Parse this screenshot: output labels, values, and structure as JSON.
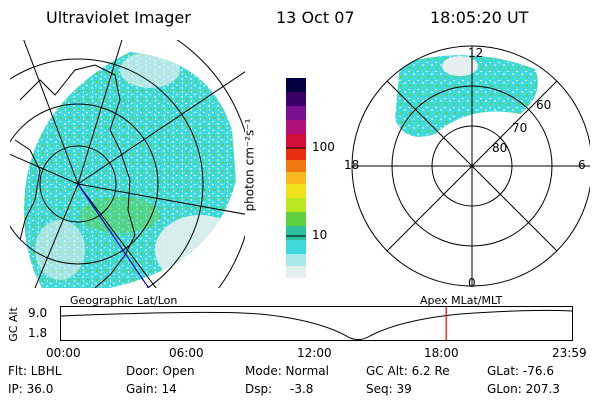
{
  "header": {
    "title": "Ultraviolet Imager",
    "date": "13 Oct 07",
    "time": "18:05:20 UT"
  },
  "colorbar": {
    "label": "photon cm⁻²s⁻¹",
    "ticks": [
      "100",
      "10"
    ],
    "colors": [
      "#000040",
      "#3a006a",
      "#7a1090",
      "#b0107a",
      "#d0103a",
      "#e83010",
      "#f07810",
      "#f8b820",
      "#f0e020",
      "#b8e820",
      "#60d040",
      "#30c0a0",
      "#40d8d8",
      "#a8e8e8",
      "#e6efef"
    ]
  },
  "geo_panel": {
    "caption": "Geographic Lat/Lon"
  },
  "polar_panel": {
    "caption": "Apex MLat/MLT",
    "mlt_labels": {
      "top": "12",
      "left": "18",
      "right": "6",
      "bottom": "0"
    },
    "lat_labels": [
      "60",
      "70",
      "80"
    ]
  },
  "altitude_plot": {
    "ylabel": "GC Alt",
    "ymax": "9.0",
    "ymin": "1.8",
    "xticks": [
      "00:00",
      "06:00",
      "12:00",
      "18:00",
      "23:59"
    ],
    "current_marker_hour": 18.09
  },
  "info": {
    "flt": "Flt: LBHL",
    "ip": "IP: 36.0",
    "door": "Door: Open",
    "gain": "Gain: 14",
    "mode": "Mode: Normal",
    "dsp_label": "Dsp:",
    "dsp_value": "-3.8",
    "gcalt": "GC Alt: 6.2 Re",
    "seq": "Seq: 39",
    "glat": "GLat: -76.6",
    "glon": "GLon: 207.3"
  },
  "colors": {
    "marker": "#dd0000",
    "image_base": "#40d8d8",
    "image_light": "#a8e8e8",
    "image_green": "#60d040",
    "coast_line": "#0000cc"
  }
}
